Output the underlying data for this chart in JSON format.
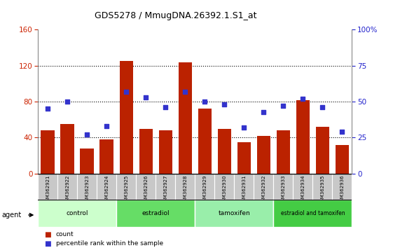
{
  "title": "GDS5278 / MmugDNA.26392.1.S1_at",
  "samples": [
    "GSM362921",
    "GSM362922",
    "GSM362923",
    "GSM362924",
    "GSM362925",
    "GSM362926",
    "GSM362927",
    "GSM362928",
    "GSM362929",
    "GSM362930",
    "GSM362931",
    "GSM362932",
    "GSM362933",
    "GSM362934",
    "GSM362935",
    "GSM362936"
  ],
  "counts": [
    48,
    55,
    28,
    38,
    125,
    50,
    48,
    124,
    72,
    50,
    35,
    42,
    48,
    82,
    52,
    32
  ],
  "percentiles": [
    45,
    50,
    27,
    33,
    57,
    53,
    46,
    57,
    50,
    48,
    32,
    43,
    47,
    52,
    46,
    29
  ],
  "bar_color": "#bb2200",
  "dot_color": "#3333cc",
  "ylim_left": [
    0,
    160
  ],
  "ylim_right": [
    0,
    100
  ],
  "yticks_left": [
    0,
    40,
    80,
    120,
    160
  ],
  "yticks_right": [
    0,
    25,
    50,
    75,
    100
  ],
  "groups": [
    {
      "label": "control",
      "start": 0,
      "end": 4,
      "color": "#ccffcc"
    },
    {
      "label": "estradiol",
      "start": 4,
      "end": 8,
      "color": "#66dd66"
    },
    {
      "label": "tamoxifen",
      "start": 8,
      "end": 12,
      "color": "#99eeaa"
    },
    {
      "label": "estradiol and tamoxifen",
      "start": 12,
      "end": 16,
      "color": "#44cc44"
    }
  ],
  "agent_label": "agent",
  "legend_count": "count",
  "legend_pct": "percentile rank within the sample",
  "background_color": "#ffffff",
  "tick_label_color_left": "#cc2200",
  "tick_label_color_right": "#2222cc",
  "sample_box_color": "#c8c8c8",
  "gridline_color": "#000000"
}
